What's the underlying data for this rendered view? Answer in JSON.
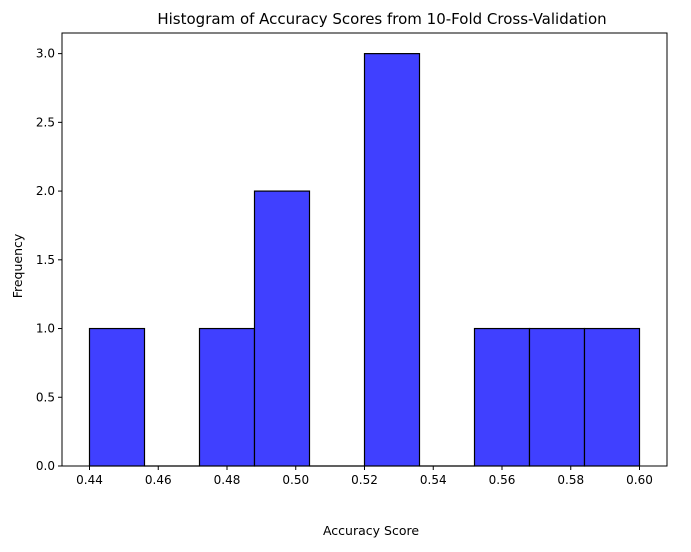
{
  "chart_data": {
    "type": "bar",
    "title": "Histogram of Accuracy Scores from 10-Fold Cross-Validation",
    "xlabel": "Accuracy Score",
    "ylabel": "Frequency",
    "xlim": [
      0.432,
      0.608
    ],
    "ylim": [
      0,
      3.15
    ],
    "bins": [
      {
        "start": 0.44,
        "end": 0.456,
        "count": 1
      },
      {
        "start": 0.456,
        "end": 0.472,
        "count": 0
      },
      {
        "start": 0.472,
        "end": 0.488,
        "count": 1
      },
      {
        "start": 0.488,
        "end": 0.504,
        "count": 2
      },
      {
        "start": 0.504,
        "end": 0.52,
        "count": 0
      },
      {
        "start": 0.52,
        "end": 0.536,
        "count": 3
      },
      {
        "start": 0.536,
        "end": 0.552,
        "count": 0
      },
      {
        "start": 0.552,
        "end": 0.568,
        "count": 1
      },
      {
        "start": 0.568,
        "end": 0.584,
        "count": 1
      },
      {
        "start": 0.584,
        "end": 0.6,
        "count": 1
      }
    ],
    "xticks": [
      0.44,
      0.46,
      0.48,
      0.5,
      0.52,
      0.54,
      0.56,
      0.58,
      0.6
    ],
    "xtick_labels": [
      "0.44",
      "0.46",
      "0.48",
      "0.50",
      "0.52",
      "0.54",
      "0.56",
      "0.58",
      "0.60"
    ],
    "yticks": [
      0.0,
      0.5,
      1.0,
      1.5,
      2.0,
      2.5,
      3.0
    ],
    "ytick_labels": [
      "0.0",
      "0.5",
      "1.0",
      "1.5",
      "2.0",
      "2.5",
      "3.0"
    ],
    "bar_color": "#4040ff",
    "edge_color": "#000000",
    "grid": false,
    "legend": "none"
  }
}
